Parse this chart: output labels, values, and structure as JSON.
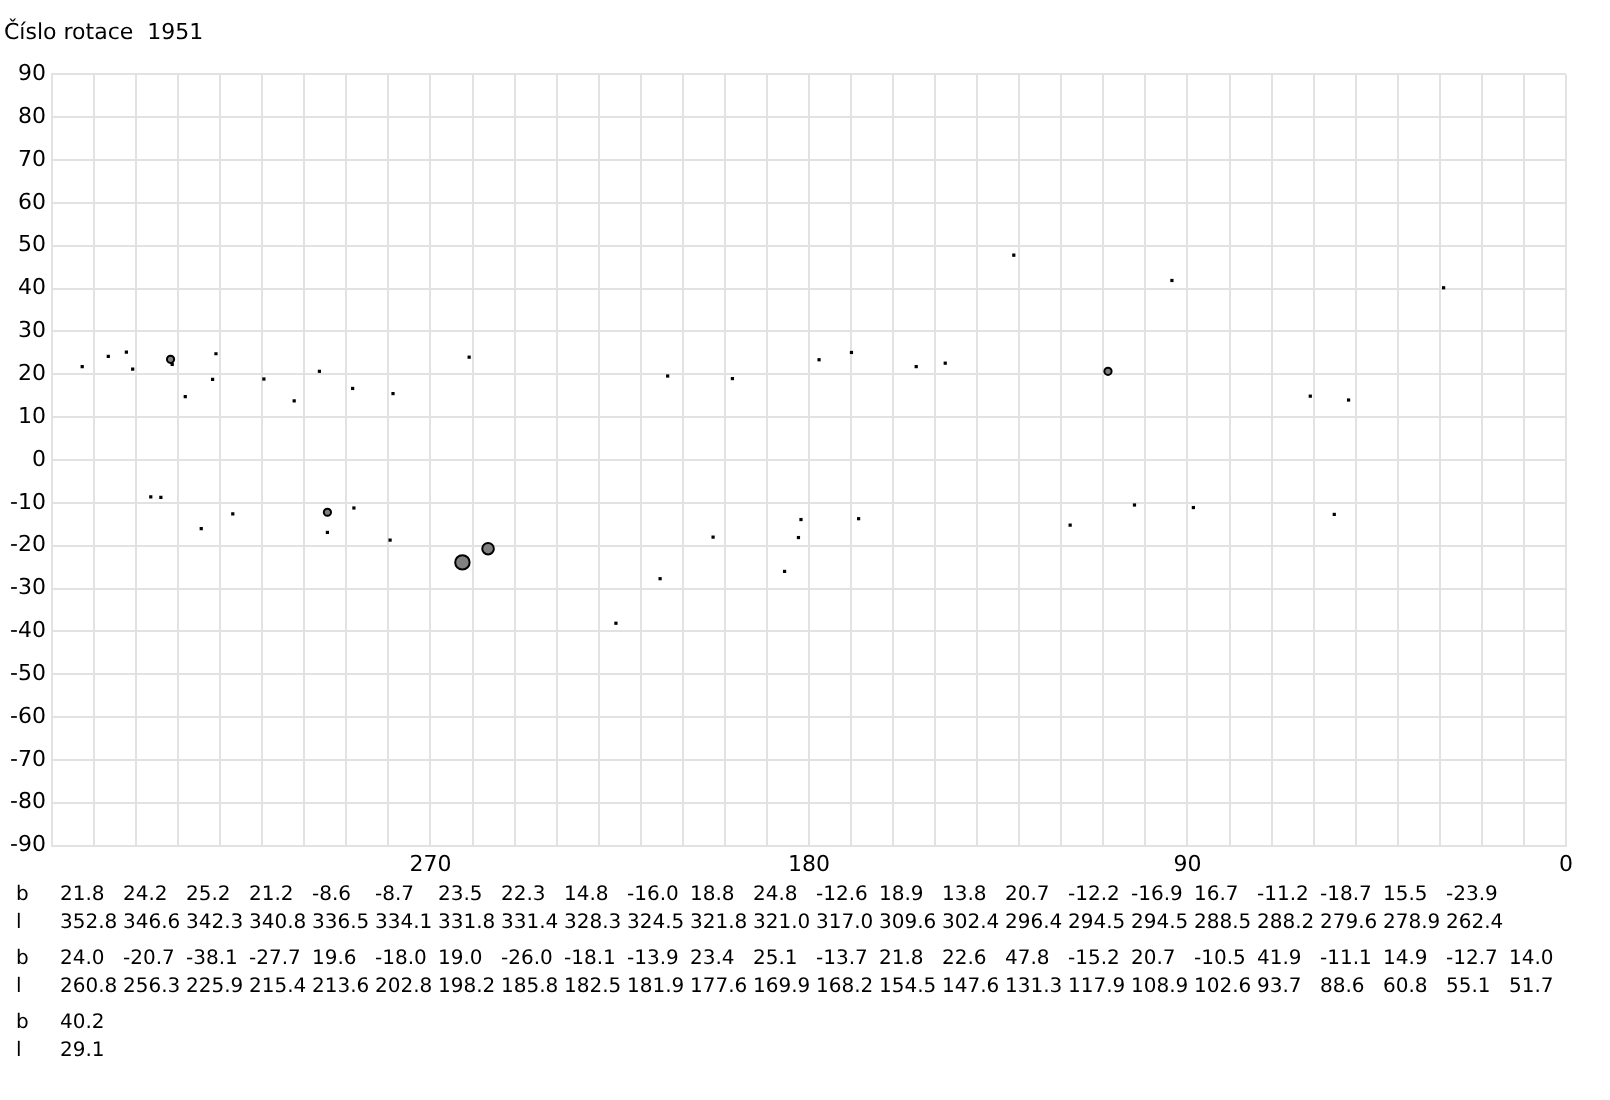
{
  "chart_data": {
    "type": "bubble",
    "title": "Číslo rotace  1951",
    "x": [
      352.8,
      346.6,
      342.3,
      340.8,
      336.5,
      334.1,
      331.8,
      331.4,
      328.3,
      324.5,
      321.8,
      321.0,
      317.0,
      309.6,
      302.4,
      296.4,
      294.5,
      294.5,
      288.5,
      288.2,
      279.6,
      278.9,
      262.4,
      260.8,
      256.3,
      225.9,
      215.4,
      213.6,
      202.8,
      198.2,
      185.8,
      182.5,
      181.9,
      177.6,
      169.9,
      168.2,
      154.5,
      147.6,
      131.3,
      117.9,
      108.9,
      102.6,
      93.7,
      88.6,
      60.8,
      55.1,
      51.7,
      29.1
    ],
    "values": [
      21.8,
      24.2,
      25.2,
      21.2,
      -8.6,
      -8.7,
      23.5,
      22.3,
      14.8,
      -16.0,
      18.8,
      24.8,
      -12.6,
      18.9,
      13.8,
      20.7,
      -12.2,
      -16.9,
      16.7,
      -11.2,
      -18.7,
      15.5,
      -23.9,
      24.0,
      -20.7,
      -38.1,
      -27.7,
      19.6,
      -18.0,
      19.0,
      -26.0,
      -18.1,
      -13.9,
      23.4,
      25.1,
      -13.7,
      21.8,
      22.6,
      47.8,
      -15.2,
      20.7,
      -10.5,
      41.9,
      -11.1,
      14.9,
      -12.7,
      14.0,
      40.2
    ],
    "sizes": [
      0.1,
      0.1,
      0.1,
      0.1,
      0.1,
      0.1,
      0.25,
      0.1,
      0.1,
      0.1,
      0.1,
      0.1,
      0.1,
      0.1,
      0.1,
      0.1,
      0.25,
      0.1,
      0.1,
      0.1,
      0.1,
      0.1,
      1,
      0.1,
      0.65,
      0.1,
      0.1,
      0.1,
      0.1,
      0.1,
      0.1,
      0.1,
      0.1,
      0.1,
      0.1,
      0.1,
      0.1,
      0.1,
      0.1,
      0.1,
      0.25,
      0.1,
      0.1,
      0.1,
      0.1,
      0.1,
      0.1,
      0.1
    ],
    "colors": [
      "#000000",
      "#000000",
      "#000000",
      "#000000",
      "#000000",
      "#000000",
      "#808080",
      "#000000",
      "#000000",
      "#000000",
      "#000000",
      "#000000",
      "#000000",
      "#000000",
      "#000000",
      "#000000",
      "#808080",
      "#000000",
      "#000000",
      "#000000",
      "#000000",
      "#000000",
      "#808080",
      "#000000",
      "#808080",
      "#000000",
      "#000000",
      "#000000",
      "#000000",
      "#000000",
      "#000000",
      "#000000",
      "#000000",
      "#000000",
      "#000000",
      "#000000",
      "#000000",
      "#000000",
      "#000000",
      "#000000",
      "#808080",
      "#000000",
      "#000000",
      "#000000",
      "#000000",
      "#000000",
      "#000000",
      "#000000"
    ],
    "xlim": [
      360,
      0
    ],
    "xticks": [
      {
        "value": 360,
        "label": null
      },
      {
        "value": 350,
        "label": null
      },
      {
        "value": 340,
        "label": null
      },
      {
        "value": 330,
        "label": null
      },
      {
        "value": 320,
        "label": null
      },
      {
        "value": 310,
        "label": null
      },
      {
        "value": 300,
        "label": null
      },
      {
        "value": 290,
        "label": null
      },
      {
        "value": 280,
        "label": null
      },
      270,
      {
        "value": 260,
        "label": null
      },
      {
        "value": 250,
        "label": null
      },
      {
        "value": 240,
        "label": null
      },
      {
        "value": 230,
        "label": null
      },
      {
        "value": 220,
        "label": null
      },
      {
        "value": 210,
        "label": null
      },
      {
        "value": 200,
        "label": null
      },
      {
        "value": 190,
        "label": null
      },
      180,
      {
        "value": 170,
        "label": null
      },
      {
        "value": 160,
        "label": null
      },
      {
        "value": 150,
        "label": null
      },
      {
        "value": 140,
        "label": null
      },
      {
        "value": 130,
        "label": null
      },
      {
        "value": 120,
        "label": null
      },
      {
        "value": 110,
        "label": null
      },
      {
        "value": 100,
        "label": null
      },
      90,
      {
        "value": 80,
        "label": null
      },
      {
        "value": 70,
        "label": null
      },
      {
        "value": 60,
        "label": null
      },
      {
        "value": 50,
        "label": null
      },
      {
        "value": 40,
        "label": null
      },
      {
        "value": 30,
        "label": null
      },
      {
        "value": 20,
        "label": null
      },
      {
        "value": 10,
        "label": null
      },
      0
    ],
    "ylim": [
      -90,
      90
    ],
    "yticks": [
      -90,
      -80,
      -70,
      -60,
      -50,
      -40,
      -30,
      -20,
      -10,
      0,
      10,
      20,
      30,
      40,
      50,
      60,
      70,
      80,
      90
    ],
    "grid": true,
    "annotations": [
      "b 21.8 24.2 25.2 21.2 -8.6 -8.7 23.5 22.3 14.8 -16.0 18.8 24.8 -12.6 18.9 13.8 20.7 -12.2 -16.9 16.7 -11.2 -18.7 15.5 -23.9",
      "l 352.8 346.6 342.3 340.8 336.5 334.1 331.8 331.4 328.3 324.5 321.8 321.0 317.0 309.6 302.4 296.4 294.5 294.5 288.5 288.2 279.6 278.9 262.4",
      "b 24.0 -20.7 -38.1 -27.7 19.6 -18.0 19.0 -26.0 -18.1 -13.9 23.4 25.1 -13.7 21.8 22.6 47.8 -15.2 20.7 -10.5 41.9 -11.1 14.9 -12.7 14.0",
      "l 260.8 256.3 225.9 215.4 213.6 202.8 198.2 185.8 182.5 181.9 177.6 169.9 168.2 154.5 147.6 131.3 117.9 108.9 102.6 93.7 88.6 60.8 55.1 51.7",
      "b 40.2",
      "l 29.1"
    ]
  }
}
